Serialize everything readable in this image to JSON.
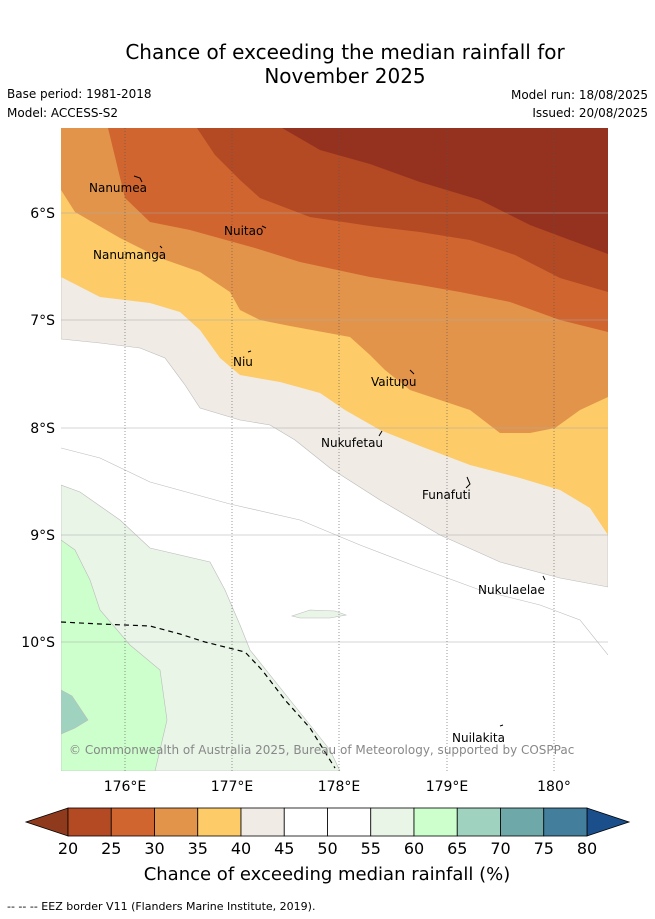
{
  "title_line1": "Chance of exceeding the median rainfall for",
  "title_line2": "November 2025",
  "base_period": "Base period: 1981-2018",
  "model": "Model: ACCESS-S2",
  "model_run": "Model run: 18/08/2025",
  "issued": "Issued: 20/08/2025",
  "latitude_labels": [
    "6°S",
    "7°S",
    "8°S",
    "9°S",
    "10°S"
  ],
  "longitude_labels": [
    "176°E",
    "177°E",
    "178°E",
    "179°E",
    "180°"
  ],
  "places": [
    {
      "name": "Nanumea"
    },
    {
      "name": "Nuitao"
    },
    {
      "name": "Nanumanga"
    },
    {
      "name": "Niu"
    },
    {
      "name": "Vaitupu"
    },
    {
      "name": "Nukufetau"
    },
    {
      "name": "Funafuti"
    },
    {
      "name": "Nukulaelae"
    },
    {
      "name": "Nuilakita"
    }
  ],
  "copyright": "© Commonwealth of Australia 2025, Bureau of Meteorology, supported by COSPPac",
  "colorbar": {
    "title": "Chance of exceeding median rainfall (%)",
    "ticks": [
      "20",
      "25",
      "30",
      "35",
      "40",
      "45",
      "50",
      "55",
      "60",
      "65",
      "70",
      "75",
      "80"
    ],
    "low_extend_color": "#8f3a1d",
    "high_extend_color": "#1a4f8b",
    "colors": [
      "#b44a23",
      "#d0652f",
      "#e2944a",
      "#fdcb68",
      "#f0ebe5",
      "#ffffff",
      "#ffffff",
      "#e9f5e7",
      "#ccffcc",
      "#9fd3bf",
      "#6ea8a8",
      "#437e9c"
    ]
  },
  "footnote": "-- -- -- EEZ border V11 (Flanders Marine Institute, 2019)."
}
